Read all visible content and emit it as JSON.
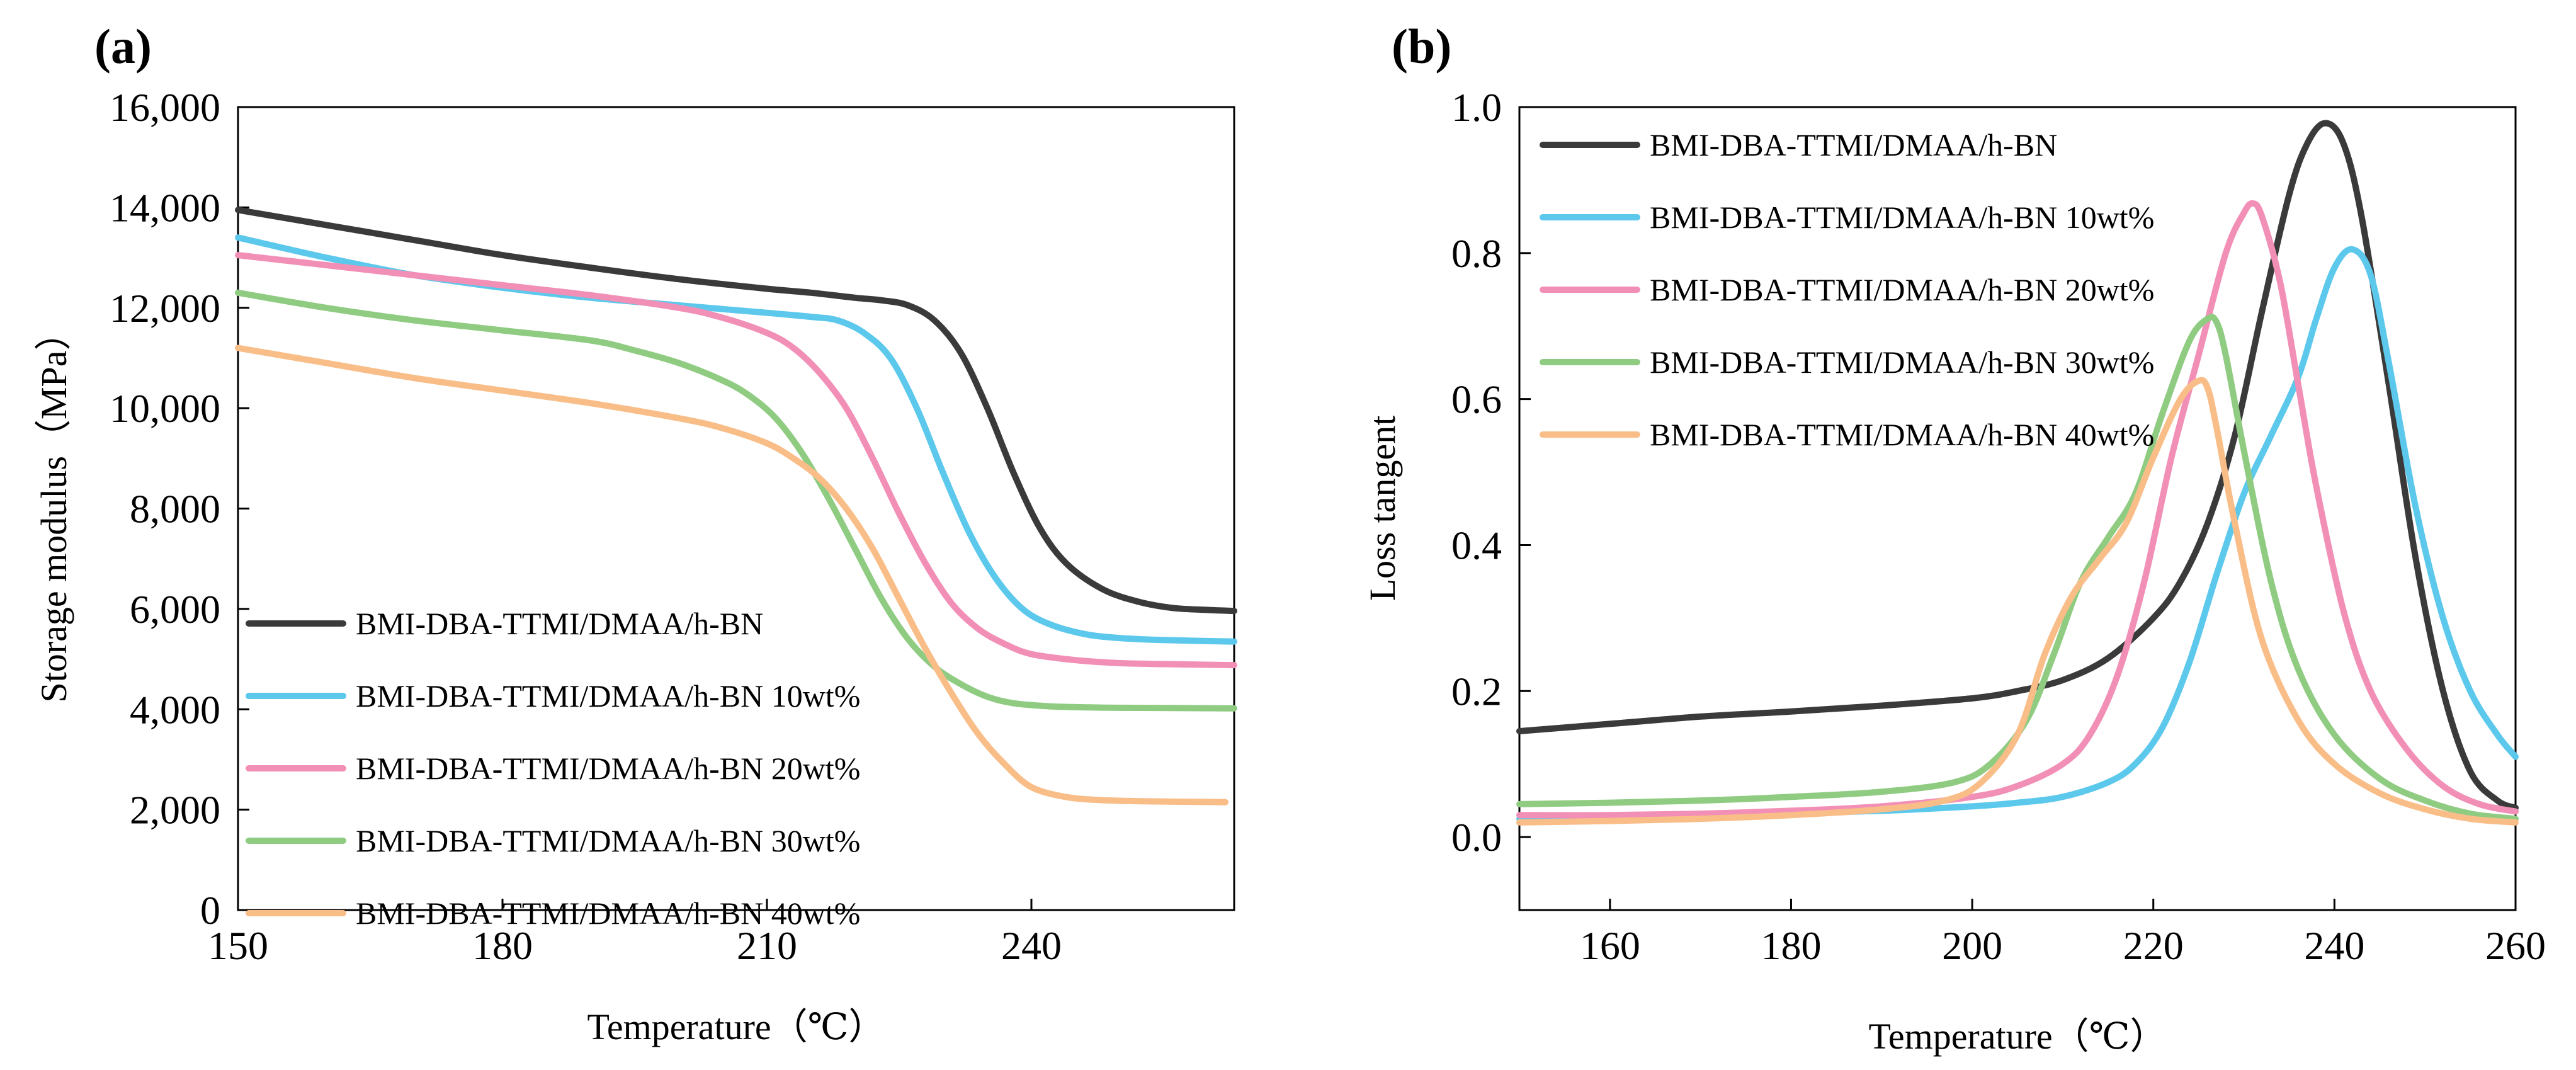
{
  "chart_data": [
    {
      "type": "line",
      "panel_label": "(a)",
      "xlabel": "Temperature（℃）",
      "ylabel": "Storage modulus（MPa）",
      "xlim": [
        150,
        263
      ],
      "ylim": [
        0,
        16000
      ],
      "x_ticks": [
        150,
        180,
        210,
        240
      ],
      "x_tick_labels": [
        "150",
        "180",
        "210",
        "240"
      ],
      "y_ticks": [
        0,
        2000,
        4000,
        6000,
        8000,
        10000,
        12000,
        14000,
        16000
      ],
      "y_tick_labels": [
        "0",
        "2,000",
        "4,000",
        "6,000",
        "8,000",
        "10,000",
        "12,000",
        "14,000",
        "16,000"
      ],
      "grid": false,
      "legend_position": "bottom-left",
      "series": [
        {
          "name": "BMI-DBA-TTMI/DMAA/h-BN",
          "color": "#3a3a3a",
          "x": [
            150,
            160,
            170,
            180,
            190,
            200,
            210,
            215,
            220,
            223,
            226,
            229,
            232,
            235,
            238,
            241,
            244,
            248,
            252,
            256,
            260,
            263
          ],
          "y": [
            13950,
            13650,
            13350,
            13050,
            12800,
            12570,
            12380,
            12300,
            12200,
            12150,
            12050,
            11750,
            11100,
            10000,
            8700,
            7600,
            6900,
            6400,
            6150,
            6020,
            5980,
            5960
          ]
        },
        {
          "name": "BMI-DBA-TTMI/DMAA/h-BN 10wt%",
          "color": "#5bc8ec",
          "x": [
            150,
            160,
            170,
            180,
            190,
            200,
            210,
            215,
            218,
            221,
            224,
            227,
            230,
            233,
            236,
            239,
            242,
            246,
            250,
            255,
            263
          ],
          "y": [
            13400,
            13000,
            12650,
            12400,
            12200,
            12050,
            11900,
            11820,
            11750,
            11500,
            11000,
            10000,
            8700,
            7500,
            6600,
            6000,
            5700,
            5500,
            5420,
            5380,
            5350
          ]
        },
        {
          "name": "BMI-DBA-TTMI/DMAA/h-BN 20wt%",
          "color": "#f28fb6",
          "x": [
            150,
            160,
            170,
            180,
            190,
            200,
            205,
            210,
            213,
            216,
            219,
            222,
            225,
            228,
            231,
            234,
            237,
            240,
            245,
            250,
            255,
            263
          ],
          "y": [
            13050,
            12850,
            12650,
            12450,
            12250,
            12000,
            11800,
            11500,
            11200,
            10700,
            10000,
            9000,
            7900,
            6900,
            6100,
            5600,
            5300,
            5100,
            4980,
            4920,
            4900,
            4880
          ]
        },
        {
          "name": "BMI-DBA-TTMI/DMAA/h-BN 30wt%",
          "color": "#8fcc82",
          "x": [
            150,
            160,
            170,
            180,
            190,
            195,
            200,
            205,
            208,
            211,
            214,
            217,
            220,
            223,
            226,
            229,
            232,
            235,
            238,
            242,
            246,
            250,
            263
          ],
          "y": [
            12300,
            12000,
            11750,
            11550,
            11350,
            11150,
            10900,
            10550,
            10250,
            9800,
            9100,
            8200,
            7200,
            6200,
            5400,
            4850,
            4500,
            4250,
            4120,
            4060,
            4040,
            4030,
            4020
          ]
        },
        {
          "name": "BMI-DBA-TTMI/DMAA/h-BN 40wt%",
          "color": "#f9bd88",
          "x": [
            150,
            160,
            170,
            180,
            190,
            200,
            205,
            210,
            213,
            216,
            219,
            222,
            225,
            228,
            231,
            234,
            237,
            240,
            244,
            248,
            252,
            256,
            262
          ],
          "y": [
            11200,
            10900,
            10600,
            10350,
            10100,
            9800,
            9600,
            9300,
            9000,
            8600,
            8000,
            7200,
            6200,
            5200,
            4300,
            3500,
            2900,
            2450,
            2250,
            2190,
            2170,
            2160,
            2150
          ]
        }
      ]
    },
    {
      "type": "line",
      "panel_label": "(b)",
      "xlabel": "Temperature（℃）",
      "ylabel": "Loss tangent",
      "xlim": [
        150,
        260
      ],
      "ylim": [
        -0.1,
        1.0
      ],
      "x_ticks": [
        160,
        180,
        200,
        220,
        240,
        260
      ],
      "x_tick_labels": [
        "160",
        "180",
        "200",
        "220",
        "240",
        "260"
      ],
      "y_ticks": [
        0.0,
        0.2,
        0.4,
        0.6,
        0.8,
        1.0
      ],
      "y_tick_labels": [
        "0.0",
        "0.2",
        "0.4",
        "0.6",
        "0.8",
        "1.0"
      ],
      "grid": false,
      "legend_position": "top-left",
      "series": [
        {
          "name": "BMI-DBA-TTMI/DMAA/h-BN",
          "color": "#3a3a3a",
          "x": [
            150,
            160,
            170,
            180,
            190,
            200,
            205,
            210,
            215,
            220,
            223,
            226,
            229,
            232,
            235,
            237,
            239,
            241,
            243,
            246,
            249,
            252,
            255,
            258,
            260
          ],
          "y": [
            0.145,
            0.155,
            0.165,
            0.172,
            0.18,
            0.19,
            0.2,
            0.215,
            0.245,
            0.3,
            0.35,
            0.43,
            0.55,
            0.72,
            0.88,
            0.95,
            0.978,
            0.95,
            0.85,
            0.62,
            0.38,
            0.2,
            0.09,
            0.05,
            0.04
          ]
        },
        {
          "name": "BMI-DBA-TTMI/DMAA/h-BN 10wt%",
          "color": "#5bc8ec",
          "x": [
            150,
            160,
            170,
            180,
            190,
            200,
            205,
            210,
            215,
            218,
            221,
            224,
            227,
            230,
            233,
            236,
            238,
            240,
            242,
            244,
            246,
            249,
            252,
            255,
            258,
            260
          ],
          "y": [
            0.025,
            0.028,
            0.03,
            0.033,
            0.036,
            0.042,
            0.047,
            0.055,
            0.075,
            0.1,
            0.15,
            0.24,
            0.36,
            0.47,
            0.55,
            0.63,
            0.71,
            0.78,
            0.805,
            0.77,
            0.65,
            0.45,
            0.3,
            0.2,
            0.14,
            0.11
          ]
        },
        {
          "name": "BMI-DBA-TTMI/DMAA/h-BN 20wt%",
          "color": "#f28fb6",
          "x": [
            150,
            160,
            170,
            180,
            190,
            200,
            205,
            210,
            213,
            216,
            219,
            222,
            225,
            228,
            230,
            231,
            232,
            234,
            236,
            238,
            241,
            244,
            248,
            252,
            256,
            260
          ],
          "y": [
            0.03,
            0.03,
            0.032,
            0.036,
            0.042,
            0.055,
            0.07,
            0.1,
            0.14,
            0.22,
            0.35,
            0.52,
            0.66,
            0.8,
            0.855,
            0.868,
            0.85,
            0.76,
            0.62,
            0.48,
            0.31,
            0.2,
            0.12,
            0.07,
            0.045,
            0.035
          ]
        },
        {
          "name": "BMI-DBA-TTMI/DMAA/h-BN 30wt%",
          "color": "#8fcc82",
          "x": [
            150,
            160,
            170,
            180,
            190,
            198,
            202,
            206,
            209,
            212,
            215,
            218,
            221,
            224,
            226,
            227,
            228,
            230,
            233,
            236,
            240,
            245,
            250,
            255,
            260
          ],
          "y": [
            0.045,
            0.047,
            0.05,
            0.055,
            0.062,
            0.075,
            0.1,
            0.16,
            0.25,
            0.35,
            0.41,
            0.47,
            0.58,
            0.68,
            0.71,
            0.705,
            0.66,
            0.53,
            0.35,
            0.23,
            0.14,
            0.08,
            0.05,
            0.032,
            0.025
          ]
        },
        {
          "name": "BMI-DBA-TTMI/DMAA/h-BN 40wt%",
          "color": "#f9bd88",
          "x": [
            150,
            160,
            170,
            180,
            190,
            197,
            201,
            205,
            208,
            211,
            214,
            217,
            220,
            223,
            225,
            226,
            227,
            229,
            232,
            236,
            240,
            245,
            250,
            255,
            260
          ],
          "y": [
            0.02,
            0.022,
            0.025,
            0.03,
            0.038,
            0.05,
            0.075,
            0.14,
            0.25,
            0.33,
            0.38,
            0.43,
            0.52,
            0.6,
            0.625,
            0.615,
            0.56,
            0.43,
            0.27,
            0.16,
            0.1,
            0.06,
            0.038,
            0.025,
            0.02
          ]
        }
      ]
    }
  ]
}
